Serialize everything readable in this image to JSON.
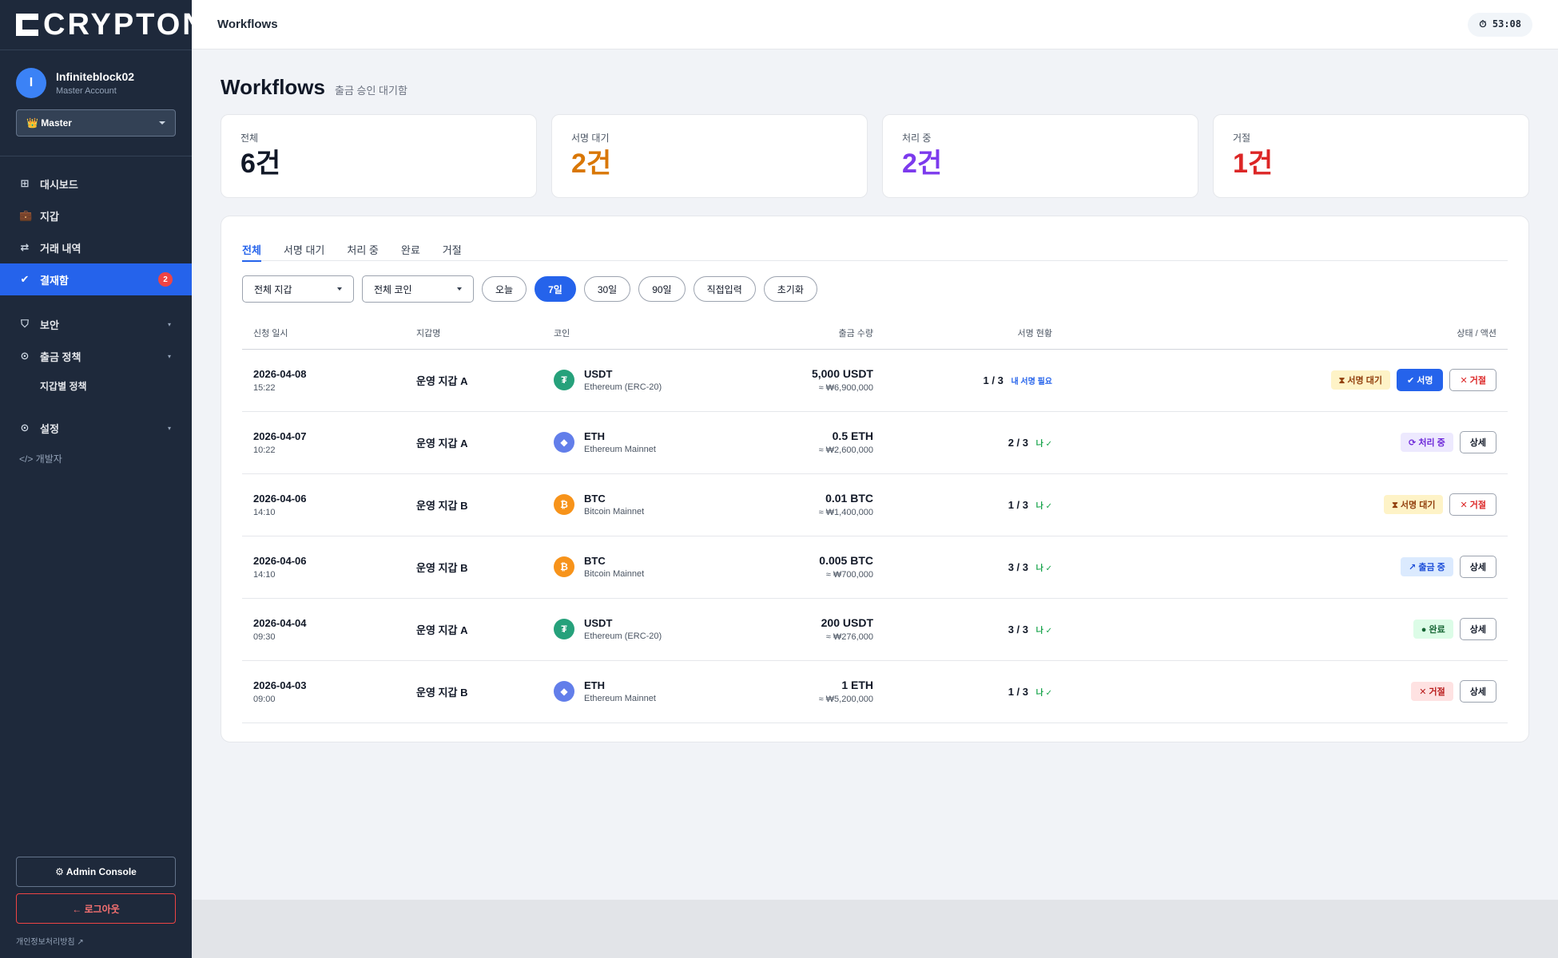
{
  "brand": {
    "logo_text": "CRYPTON"
  },
  "user": {
    "initial": "I",
    "name": "Infiniteblock02",
    "role": "Master Account",
    "role_select": "👑 Master"
  },
  "nav": {
    "items": [
      {
        "icon": "grid-icon",
        "glyph": "⊞",
        "label": "대시보드"
      },
      {
        "icon": "wallet-icon",
        "glyph": "💼",
        "label": "지갑"
      },
      {
        "icon": "transfer-icon",
        "glyph": "⇄",
        "label": "거래 내역"
      },
      {
        "icon": "check-icon",
        "glyph": "✔",
        "label": "결재함",
        "badge": "2"
      }
    ],
    "security": {
      "glyph": "⛉",
      "label": "보안"
    },
    "policy": {
      "glyph": "⊙",
      "label": "출금 정책",
      "sub": "지갑별 정책"
    },
    "settings": {
      "glyph": "⊙",
      "label": "설정"
    },
    "developer": "</> 개발자"
  },
  "sidebar_bottom": {
    "admin": "⚙ Admin Console",
    "logout": "← 로그아웃",
    "privacy": "개인정보처리방침 ↗"
  },
  "header": {
    "title": "Workflows",
    "timer": "⏱ 53:08"
  },
  "page": {
    "title": "Workflows",
    "subtitle": "출금 승인 대기함"
  },
  "stats": [
    {
      "label": "전체",
      "value": "6건",
      "color": "#111827"
    },
    {
      "label": "서명 대기",
      "value": "2건",
      "color": "#d97706"
    },
    {
      "label": "처리 중",
      "value": "2건",
      "color": "#7c3aed"
    },
    {
      "label": "거절",
      "value": "1건",
      "color": "#dc2626"
    }
  ],
  "tabs": [
    "전체",
    "서명 대기",
    "처리 중",
    "완료",
    "거절"
  ],
  "filters": {
    "wallet_select": "전체 지갑",
    "coin_select": "전체 코인",
    "periods": [
      "오늘",
      "7일",
      "30일",
      "90일",
      "직접입력"
    ],
    "active_period": "7일",
    "reset": "초기화"
  },
  "table": {
    "columns": [
      "신청 일시",
      "지갑명",
      "코인",
      "출금 수량",
      "서명 현황",
      "상태 / 액션"
    ],
    "rows": [
      {
        "date": "2026-04-08",
        "time": "15:22",
        "wallet": "운영 지갑 A",
        "coin": "USDT",
        "network": "Ethereum (ERC-20)",
        "coin_color": "#26a17b",
        "coin_glyph": "₮",
        "amount": "5,000 USDT",
        "krw": "≈ ₩6,900,000",
        "sig": "1 / 3",
        "sig_note": "내 서명 필요",
        "sig_note_color": "#2563eb",
        "status": "⧗ 서명 대기",
        "status_bg": "#fef3c7",
        "status_fg": "#92400e",
        "actions": [
          {
            "label": "✔ 서명",
            "kind": "primary"
          },
          {
            "label": "✕ 거절",
            "kind": "danger"
          }
        ]
      },
      {
        "date": "2026-04-07",
        "time": "10:22",
        "wallet": "운영 지갑 A",
        "coin": "ETH",
        "network": "Ethereum Mainnet",
        "coin_color": "#627eea",
        "coin_glyph": "◆",
        "amount": "0.5 ETH",
        "krw": "≈ ₩2,600,000",
        "sig": "2 / 3",
        "sig_note": "나 ✓",
        "sig_note_color": "#16a34a",
        "status": "⟳ 처리 중",
        "status_bg": "#ede9fe",
        "status_fg": "#6d28d9",
        "actions": [
          {
            "label": "상세",
            "kind": "default"
          }
        ]
      },
      {
        "date": "2026-04-06",
        "time": "14:10",
        "wallet": "운영 지갑 B",
        "coin": "BTC",
        "network": "Bitcoin Mainnet",
        "coin_color": "#f7931a",
        "coin_glyph": "₿",
        "amount": "0.01 BTC",
        "krw": "≈ ₩1,400,000",
        "sig": "1 / 3",
        "sig_note": "나 ✓",
        "sig_note_color": "#16a34a",
        "status": "⧗ 서명 대기",
        "status_bg": "#fef3c7",
        "status_fg": "#92400e",
        "actions": [
          {
            "label": "✕ 거절",
            "kind": "danger"
          }
        ]
      },
      {
        "date": "2026-04-06",
        "time": "14:10",
        "wallet": "운영 지갑 B",
        "coin": "BTC",
        "network": "Bitcoin Mainnet",
        "coin_color": "#f7931a",
        "coin_glyph": "₿",
        "amount": "0.005 BTC",
        "krw": "≈ ₩700,000",
        "sig": "3 / 3",
        "sig_note": "나 ✓",
        "sig_note_color": "#16a34a",
        "status": "↗ 출금 중",
        "status_bg": "#dbeafe",
        "status_fg": "#1d4ed8",
        "actions": [
          {
            "label": "상세",
            "kind": "default"
          }
        ]
      },
      {
        "date": "2026-04-04",
        "time": "09:30",
        "wallet": "운영 지갑 A",
        "coin": "USDT",
        "network": "Ethereum (ERC-20)",
        "coin_color": "#26a17b",
        "coin_glyph": "₮",
        "amount": "200 USDT",
        "krw": "≈ ₩276,000",
        "sig": "3 / 3",
        "sig_note": "나 ✓",
        "sig_note_color": "#16a34a",
        "status": "● 완료",
        "status_bg": "#dcfce7",
        "status_fg": "#166534",
        "actions": [
          {
            "label": "상세",
            "kind": "default"
          }
        ]
      },
      {
        "date": "2026-04-03",
        "time": "09:00",
        "wallet": "운영 지갑 B",
        "coin": "ETH",
        "network": "Ethereum Mainnet",
        "coin_color": "#627eea",
        "coin_glyph": "◆",
        "amount": "1 ETH",
        "krw": "≈ ₩5,200,000",
        "sig": "1 / 3",
        "sig_note": "나 ✓",
        "sig_note_color": "#16a34a",
        "status": "✕ 거절",
        "status_bg": "#fee2e2",
        "status_fg": "#b91c1c",
        "actions": [
          {
            "label": "상세",
            "kind": "default"
          }
        ]
      }
    ]
  }
}
